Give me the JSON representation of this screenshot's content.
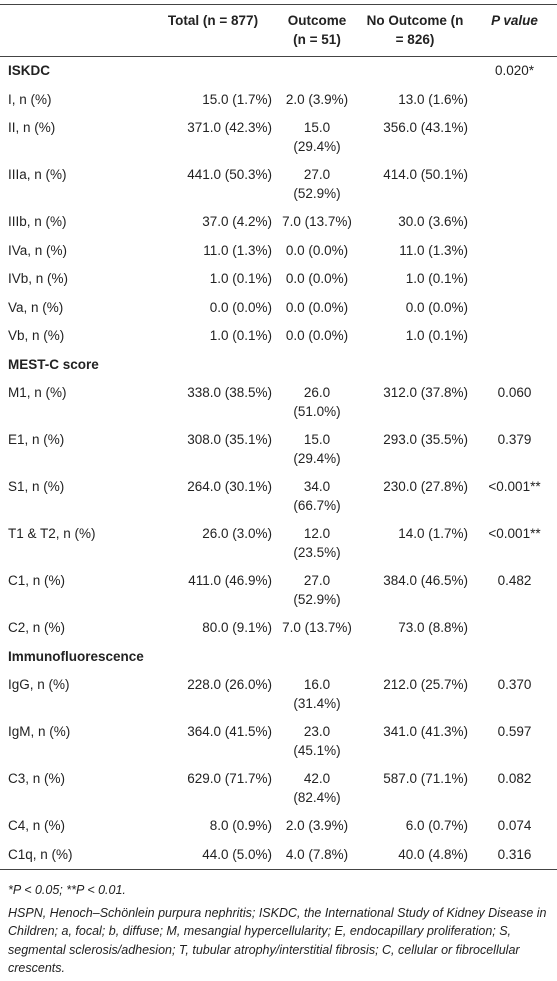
{
  "table": {
    "header": [
      "Total (n = 877)",
      "Outcome (n = 51)",
      "No Outcome (n = 826)",
      "P value"
    ],
    "sections": [
      {
        "title": "ISKDC",
        "p": "0.020*",
        "rows": [
          [
            "I, n (%)",
            "15.0 (1.7%)",
            "2.0 (3.9%)",
            "13.0 (1.6%)",
            null
          ],
          [
            "II, n (%)",
            "371.0 (42.3%)",
            "15.0 (29.4%)",
            "356.0 (43.1%)",
            null
          ],
          [
            "IIIa, n (%)",
            "441.0 (50.3%)",
            "27.0 (52.9%)",
            "414.0 (50.1%)",
            null
          ],
          [
            "IIIb, n (%)",
            "37.0 (4.2%)",
            "7.0 (13.7%)",
            "30.0 (3.6%)",
            null
          ],
          [
            "IVa, n (%)",
            "11.0 (1.3%)",
            "0.0 (0.0%)",
            "11.0 (1.3%)",
            null
          ],
          [
            "IVb, n (%)",
            "1.0 (0.1%)",
            "0.0 (0.0%)",
            "1.0 (0.1%)",
            null
          ],
          [
            "Va, n (%)",
            "0.0 (0.0%)",
            "0.0 (0.0%)",
            "0.0 (0.0%)",
            null
          ],
          [
            "Vb, n (%)",
            "1.0 (0.1%)",
            "0.0 (0.0%)",
            "1.0 (0.1%)",
            null
          ]
        ]
      },
      {
        "title": "MEST-C score",
        "p": null,
        "rows": [
          [
            "M1, n (%)",
            "338.0 (38.5%)",
            "26.0 (51.0%)",
            "312.0 (37.8%)",
            "0.060"
          ],
          [
            "E1, n (%)",
            "308.0 (35.1%)",
            "15.0 (29.4%)",
            "293.0 (35.5%)",
            "0.379"
          ],
          [
            "S1, n (%)",
            "264.0 (30.1%)",
            "34.0 (66.7%)",
            "230.0 (27.8%)",
            "<0.001**"
          ],
          [
            "T1 & T2, n (%)",
            "26.0 (3.0%)",
            "12.0 (23.5%)",
            "14.0 (1.7%)",
            "<0.001**"
          ],
          [
            "C1, n (%)",
            "411.0 (46.9%)",
            "27.0 (52.9%)",
            "384.0 (46.5%)",
            "0.482"
          ],
          [
            "C2, n (%)",
            "80.0 (9.1%)",
            "7.0 (13.7%)",
            "73.0 (8.8%)",
            null
          ]
        ]
      },
      {
        "title": "Immunofluorescence",
        "p": null,
        "rows": [
          [
            "IgG, n (%)",
            "228.0 (26.0%)",
            "16.0 (31.4%)",
            "212.0 (25.7%)",
            "0.370"
          ],
          [
            "IgM, n (%)",
            "364.0 (41.5%)",
            "23.0 (45.1%)",
            "341.0 (41.3%)",
            "0.597"
          ],
          [
            "C3, n (%)",
            "629.0 (71.7%)",
            "42.0 (82.4%)",
            "587.0 (71.1%)",
            "0.082"
          ],
          [
            "C4, n (%)",
            "8.0 (0.9%)",
            "2.0 (3.9%)",
            "6.0 (0.7%)",
            "0.074"
          ],
          [
            "C1q, n (%)",
            "44.0 (5.0%)",
            "4.0 (7.8%)",
            "40.0 (4.8%)",
            "0.316"
          ]
        ]
      }
    ],
    "footnotes": [
      "*P < 0.05; **P < 0.01.",
      "HSPN, Henoch–Schönlein purpura nephritis; ISKDC, the International Study of Kidney Disease in Children; a, focal; b, diffuse; M, mesangial hypercellularity; E, endocapillary proliferation; S, segmental sclerosis/adhesion; T, tubular atrophy/interstitial fibrosis; C, cellular or fibrocellular crescents."
    ]
  }
}
